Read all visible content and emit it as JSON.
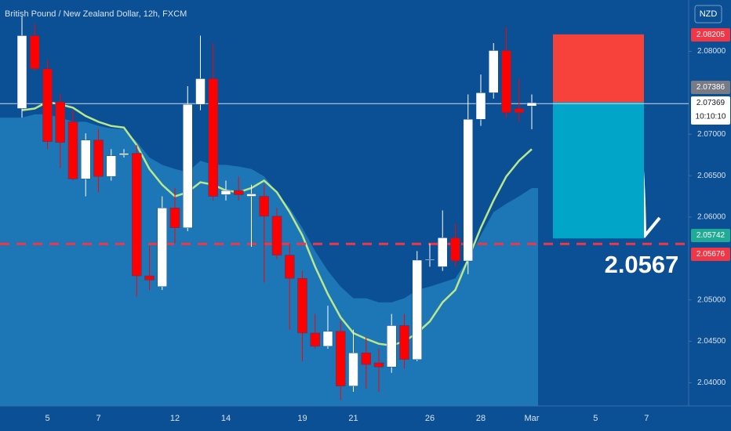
{
  "chart_data": {
    "type": "candlestick",
    "title": "British Pound / New Zealand Dollar, 12h, FXCM",
    "currency": "NZD",
    "categories": [
      null,
      null,
      "5",
      null,
      null,
      null,
      "7",
      null,
      null,
      null,
      null,
      null,
      "12",
      null,
      null,
      null,
      "14",
      null,
      null,
      null,
      null,
      null,
      "19",
      null,
      null,
      null,
      "21",
      null,
      null,
      null,
      null,
      null,
      "26",
      null,
      null,
      null,
      "28",
      null,
      null,
      null,
      "Mar",
      null,
      null,
      null,
      null,
      "5",
      null,
      null,
      null,
      "7"
    ],
    "open": [
      2.0731,
      2.0819,
      2.0779,
      2.0739,
      2.0715,
      2.0646,
      2.0693,
      2.0649,
      2.0675,
      2.0677,
      2.0529,
      2.0516,
      2.0611,
      2.0587,
      2.0736,
      2.0767,
      2.0627,
      2.0632,
      2.0625,
      2.0625,
      2.0601,
      2.0554,
      2.0526,
      2.046,
      2.0444,
      2.0462,
      2.0396,
      2.0436,
      2.0424,
      2.0419,
      2.0469,
      2.0428,
      2.0548,
      2.054,
      2.0575,
      2.0547,
      2.0718,
      2.075,
      2.0801,
      2.0731,
      2.0734,
      null,
      null,
      null,
      null,
      null,
      null,
      null,
      null,
      null
    ],
    "high": [
      2.0842,
      2.0833,
      2.079,
      2.0748,
      2.0729,
      2.0701,
      2.0706,
      2.0682,
      2.0682,
      2.0687,
      2.0565,
      2.0625,
      2.0635,
      2.0758,
      2.0819,
      2.081,
      2.0644,
      2.0649,
      2.0639,
      2.0639,
      2.0611,
      2.0568,
      2.0535,
      2.0483,
      2.0493,
      2.0474,
      2.0464,
      2.0455,
      2.0441,
      2.0483,
      2.0483,
      2.0559,
      2.0568,
      2.0608,
      2.0592,
      2.0748,
      2.0772,
      2.081,
      2.0829,
      2.0767,
      2.0748,
      null,
      null,
      null,
      null,
      null,
      null,
      null,
      null,
      null
    ],
    "low": [
      2.072,
      2.0776,
      2.0682,
      2.0659,
      2.0644,
      2.0625,
      2.063,
      2.0644,
      2.0672,
      2.0504,
      2.0512,
      2.0512,
      2.0568,
      2.0583,
      2.0729,
      2.062,
      2.062,
      2.062,
      2.0564,
      2.0521,
      2.0549,
      2.0464,
      2.0426,
      2.0441,
      2.0441,
      2.0379,
      2.0389,
      2.0393,
      2.0389,
      2.0412,
      2.0417,
      2.0426,
      2.054,
      2.0535,
      2.054,
      2.0531,
      2.071,
      2.0743,
      2.072,
      2.0715,
      2.0706,
      null,
      null,
      null,
      null,
      null,
      null,
      null,
      null,
      null
    ],
    "close": [
      2.0819,
      2.0779,
      2.0691,
      2.069,
      2.0646,
      2.0693,
      2.0649,
      2.0674,
      2.0677,
      2.0529,
      2.0524,
      2.0611,
      2.0587,
      2.0736,
      2.0767,
      2.0625,
      2.0632,
      2.0627,
      2.0628,
      2.0601,
      2.0554,
      2.0526,
      2.046,
      2.0444,
      2.0462,
      2.0396,
      2.0436,
      2.0422,
      2.0419,
      2.0469,
      2.0428,
      2.0548,
      2.0549,
      2.0575,
      2.0547,
      2.0718,
      2.075,
      2.0801,
      2.0726,
      2.0726,
      2.0738,
      null,
      null,
      null,
      null,
      null,
      null,
      null,
      null,
      null
    ],
    "up_color": "#ffffff",
    "down_color": "#ff0000",
    "band": {
      "color": "#2a93cf",
      "values": [
        2.072,
        2.0724,
        2.0724,
        2.072,
        2.0715,
        2.0715,
        2.071,
        2.0707,
        2.0706,
        2.0691,
        2.0672,
        2.0663,
        2.0658,
        2.0654,
        2.0668,
        2.0663,
        2.0663,
        2.0661,
        2.0658,
        2.0649,
        2.063,
        2.0611,
        2.0587,
        2.0559,
        2.0535,
        2.0516,
        2.0502,
        2.0502,
        2.0497,
        2.0497,
        2.0502,
        2.0512,
        2.0516,
        2.0521,
        2.0526,
        2.0549,
        2.0578,
        2.0606,
        2.0616,
        2.0625,
        2.0635,
        null,
        null,
        null,
        null,
        null,
        null,
        null,
        null,
        null
      ]
    },
    "ma": {
      "color": "#b9e88c",
      "values": [
        2.0729,
        2.0731,
        2.0739,
        2.0736,
        2.0732,
        2.0722,
        2.0715,
        2.071,
        2.0708,
        2.0687,
        2.0658,
        2.0639,
        2.0625,
        2.063,
        2.0642,
        2.0639,
        2.0632,
        2.063,
        2.0635,
        2.0644,
        2.063,
        2.0606,
        2.0578,
        2.054,
        2.0507,
        2.0479,
        2.046,
        2.0453,
        2.0447,
        2.0445,
        2.045,
        2.046,
        2.0474,
        2.0497,
        2.0512,
        2.0549,
        2.0587,
        2.062,
        2.0649,
        2.0668,
        2.0682,
        null,
        null,
        null,
        null,
        null,
        null,
        null,
        null,
        null
      ]
    },
    "ylim": [
      2.0372,
      2.0862
    ],
    "yticks": [
      {
        "value": 2.04,
        "label": "2.04000"
      },
      {
        "value": 2.045,
        "label": "2.04500"
      },
      {
        "value": 2.05,
        "label": "2.05000"
      },
      {
        "value": 2.06,
        "label": "2.06000"
      },
      {
        "value": 2.065,
        "label": "2.06500"
      },
      {
        "value": 2.07,
        "label": "2.07000"
      },
      {
        "value": 2.08,
        "label": "2.08000"
      }
    ],
    "grid": false,
    "price_labels": [
      {
        "value": 2.08205,
        "label": "2.08205",
        "color": "#f23645"
      },
      {
        "value": 2.07386,
        "label": "2.07386",
        "color": "#787b86"
      },
      {
        "value": 2.07369,
        "label": "2.07369",
        "countdown": "10:10:10",
        "color": "#ffffff"
      },
      {
        "value": 2.05742,
        "label": "2.05742",
        "color": "#22ab94"
      },
      {
        "value": 2.05676,
        "label": "2.05676",
        "color": "#f23645"
      }
    ],
    "stop_color": "#f7413b",
    "target_color": "#00a5c8",
    "annotation": "2.0567"
  }
}
